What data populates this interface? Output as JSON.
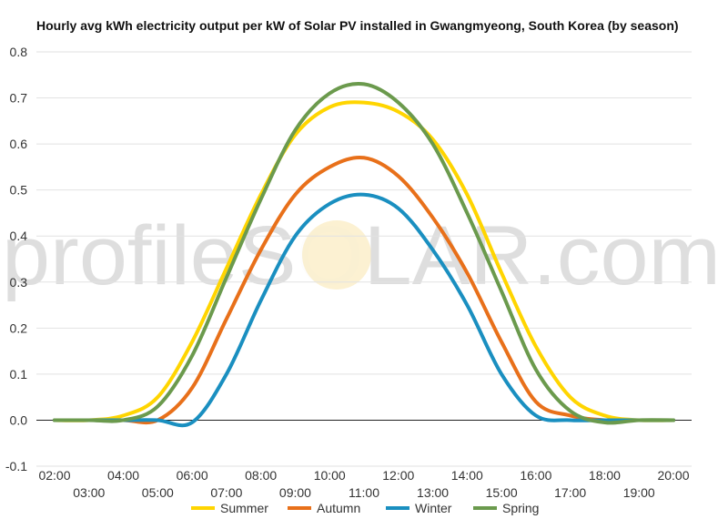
{
  "chart_data": {
    "type": "line",
    "title": "Hourly avg kWh electricity output per kW of Solar PV installed in Gwangmyeong, South Korea (by season)",
    "xlabel": "",
    "ylabel": "",
    "ylim": [
      -0.1,
      0.8
    ],
    "yticks": [
      "-0.1",
      "0.0",
      "0.1",
      "0.2",
      "0.3",
      "0.4",
      "0.5",
      "0.6",
      "0.7",
      "0.8"
    ],
    "categories": [
      "02:00",
      "03:00",
      "04:00",
      "05:00",
      "06:00",
      "07:00",
      "08:00",
      "09:00",
      "10:00",
      "11:00",
      "12:00",
      "13:00",
      "14:00",
      "15:00",
      "16:00",
      "17:00",
      "18:00",
      "19:00",
      "20:00"
    ],
    "grid": true,
    "legend": "bottom",
    "series": [
      {
        "name": "Summer",
        "color": "#ffd500",
        "values": [
          0,
          0,
          0.01,
          0.05,
          0.17,
          0.33,
          0.49,
          0.62,
          0.68,
          0.69,
          0.67,
          0.61,
          0.49,
          0.32,
          0.16,
          0.05,
          0.01,
          0,
          0
        ]
      },
      {
        "name": "Autumn",
        "color": "#e8701a",
        "values": [
          0,
          0,
          0,
          0,
          0.07,
          0.22,
          0.37,
          0.49,
          0.55,
          0.57,
          0.53,
          0.44,
          0.32,
          0.17,
          0.04,
          0.01,
          0,
          0,
          0
        ]
      },
      {
        "name": "Winter",
        "color": "#1a8fc0",
        "values": [
          0,
          0,
          0,
          0,
          -0.005,
          0.1,
          0.26,
          0.4,
          0.47,
          0.49,
          0.46,
          0.37,
          0.25,
          0.1,
          0.01,
          0,
          0,
          0,
          0
        ]
      },
      {
        "name": "Spring",
        "color": "#6b9a4d",
        "values": [
          0,
          0,
          0,
          0.03,
          0.14,
          0.31,
          0.48,
          0.63,
          0.71,
          0.73,
          0.69,
          0.6,
          0.45,
          0.28,
          0.11,
          0.02,
          -0.005,
          0,
          0
        ]
      }
    ]
  },
  "watermark": {
    "before": "profileS",
    "o": "O",
    "after": "LAR.com"
  }
}
